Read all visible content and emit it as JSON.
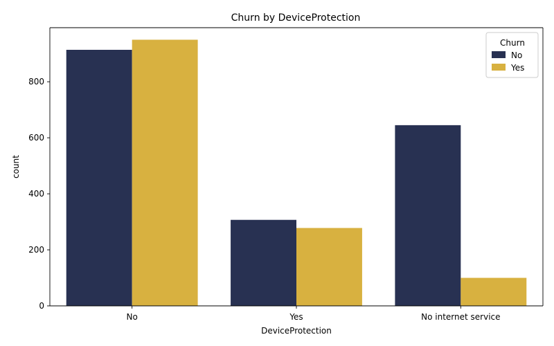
{
  "chart_data": {
    "type": "bar",
    "title": "Churn by DeviceProtection",
    "xlabel": "DeviceProtection",
    "ylabel": "count",
    "categories": [
      "No",
      "Yes",
      "No internet service"
    ],
    "series": [
      {
        "name": "No",
        "values": [
          914,
          307,
          645
        ],
        "color": "#283152"
      },
      {
        "name": "Yes",
        "values": [
          950,
          278,
          100
        ],
        "color": "#d8b140"
      }
    ],
    "ylim": [
      0,
      1000
    ],
    "yticks": [
      0,
      200,
      400,
      600,
      800
    ],
    "legend": {
      "title": "Churn",
      "placement": "top-right"
    },
    "grid": false
  }
}
